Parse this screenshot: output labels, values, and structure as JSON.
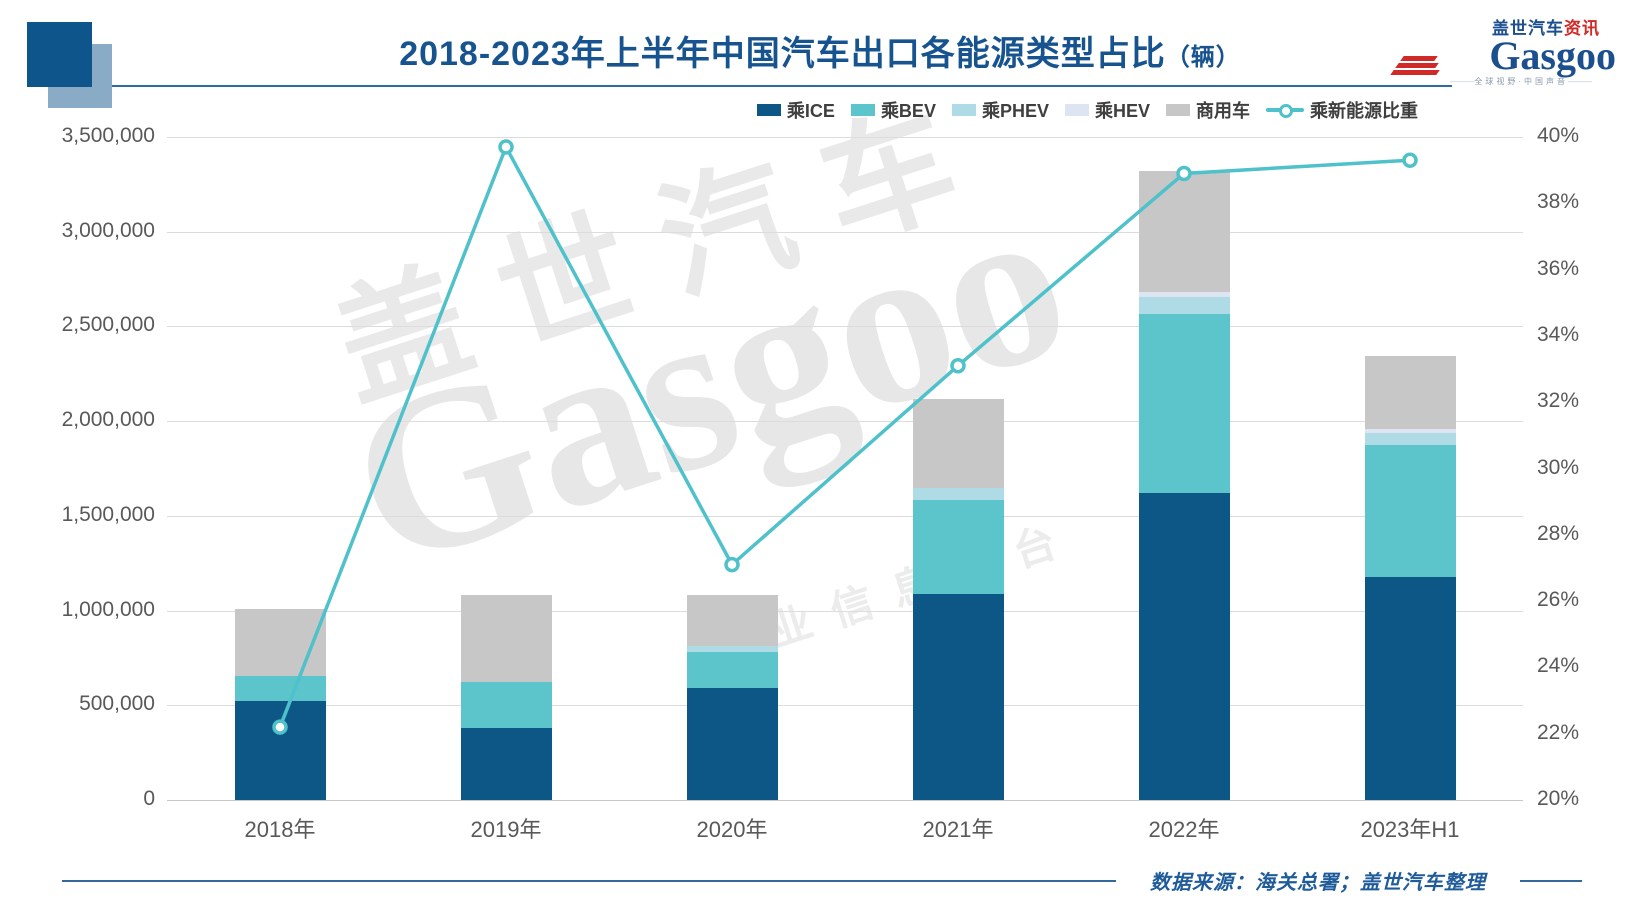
{
  "header": {
    "title_main": "2018-2023年上半年中国汽车出口各能源类型占比",
    "title_unit": "（辆）",
    "logo": {
      "brand_cn": "盖世汽车",
      "brand_cn_suffix": "资讯",
      "brand_en": "Gasgoo",
      "tagline": "全球视野·中国声音"
    }
  },
  "watermark": {
    "line1": "盖世汽车",
    "line2": "Gasgoo",
    "line3": "产业信息平台"
  },
  "footer": {
    "source_note": "数据来源：海关总署；盖世汽车整理"
  },
  "chart_data": {
    "type": "bar",
    "title": "2018-2023年上半年中国汽车出口各能源类型占比（辆）",
    "subtitle": "stacked bars = export volume by energy type (units), line = NEV share of passenger exports",
    "categories": [
      "2018年",
      "2019年",
      "2020年",
      "2021年",
      "2022年",
      "2023年H1"
    ],
    "series": [
      {
        "name": "乘ICE",
        "color": "#0d5786",
        "values": [
          520000,
          380000,
          590000,
          1090000,
          1620000,
          1175000
        ]
      },
      {
        "name": "乘BEV",
        "color": "#5cc5cb",
        "values": [
          135000,
          245000,
          190000,
          495000,
          945000,
          700000
        ]
      },
      {
        "name": "乘PHEV",
        "color": "#aedbe6",
        "values": [
          0,
          0,
          35000,
          60000,
          90000,
          60000
        ]
      },
      {
        "name": "乘HEV",
        "color": "#dde5f2",
        "values": [
          0,
          0,
          0,
          0,
          25000,
          25000
        ]
      },
      {
        "name": "商用车",
        "color": "#c7c7c7",
        "values": [
          355000,
          455000,
          265000,
          470000,
          640000,
          385000
        ]
      }
    ],
    "line_series": {
      "name": "乘新能源比重",
      "color": "#4ec1ca",
      "unit": "%",
      "values": [
        22.2,
        39.7,
        27.1,
        33.1,
        38.9,
        39.3
      ]
    },
    "left_axis": {
      "min": 0,
      "max": 3500000,
      "step": 500000,
      "tick_labels": [
        "0",
        "500,000",
        "1,000,000",
        "1,500,000",
        "2,000,000",
        "2,500,000",
        "3,000,000",
        "3,500,000"
      ]
    },
    "right_axis": {
      "min": 20,
      "max": 40,
      "step": 2,
      "tick_labels": [
        "20%",
        "22%",
        "24%",
        "26%",
        "28%",
        "30%",
        "32%",
        "34%",
        "36%",
        "38%",
        "40%"
      ]
    },
    "legend_position": "top-right",
    "grid": true
  }
}
